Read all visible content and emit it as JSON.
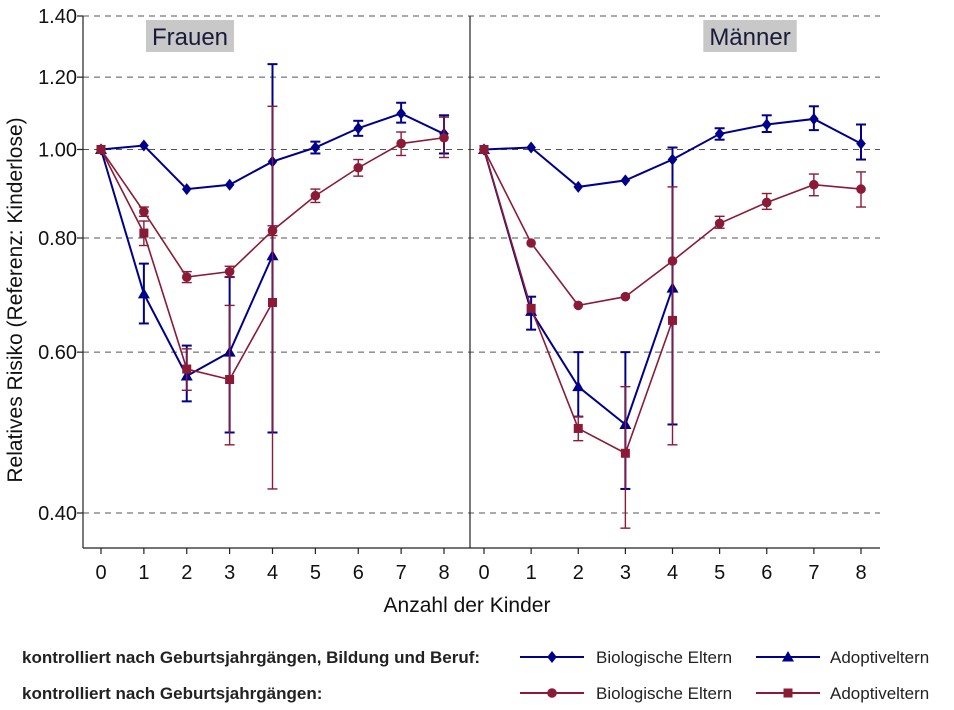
{
  "chart_data": {
    "type": "line",
    "ylabel": "Relatives Risiko (Referenz: Kinderlose)",
    "xlabel": "Anzahl der Kinder",
    "x": [
      0,
      1,
      2,
      3,
      4,
      5,
      6,
      7,
      8
    ],
    "xticks": [
      "0",
      "1",
      "2",
      "3",
      "4",
      "5",
      "6",
      "7",
      "8"
    ],
    "yscale": "log",
    "ylim": [
      0.36,
      1.4
    ],
    "yticks": [
      0.4,
      0.6,
      0.8,
      1.0,
      1.2,
      1.4
    ],
    "ytick_labels": [
      "0.40",
      "0.60",
      "0.80",
      "1.00",
      "1.20",
      "1.40"
    ],
    "grid": "horizontal dashed",
    "colors": {
      "blue": "#00008b",
      "red": "#8b1a36"
    },
    "panels": [
      {
        "title": "Frauen",
        "series": [
          {
            "key": "bio_full",
            "color": "#00008b",
            "marker": "diamond",
            "values": [
              1.0,
              1.01,
              0.905,
              0.915,
              0.97,
              1.005,
              1.055,
              1.095,
              1.04
            ],
            "lower": [
              null,
              null,
              null,
              null,
              null,
              0.99,
              1.035,
              1.07,
              0.99
            ],
            "upper": [
              null,
              null,
              null,
              null,
              null,
              1.02,
              1.075,
              1.125,
              1.09
            ]
          },
          {
            "key": "adopt_full",
            "color": "#00008b",
            "marker": "triangle",
            "values": [
              1.0,
              0.695,
              0.565,
              0.6,
              0.765,
              null,
              null,
              null,
              null
            ],
            "lower": [
              null,
              0.645,
              0.53,
              0.49,
              0.49,
              null,
              null,
              null,
              null
            ],
            "upper": [
              null,
              0.75,
              0.61,
              0.725,
              1.24,
              null,
              null,
              null,
              null
            ]
          },
          {
            "key": "bio_cohort",
            "color": "#8b1a36",
            "marker": "circle",
            "values": [
              1.0,
              0.855,
              0.725,
              0.735,
              0.815,
              0.89,
              0.955,
              1.015,
              1.03
            ],
            "lower": [
              null,
              0.845,
              0.715,
              0.725,
              0.805,
              0.875,
              0.935,
              0.985,
              0.98
            ],
            "upper": [
              null,
              0.865,
              0.735,
              0.745,
              0.825,
              0.905,
              0.975,
              1.045,
              1.085
            ]
          },
          {
            "key": "adopt_cohort",
            "color": "#8b1a36",
            "marker": "square",
            "values": [
              1.0,
              0.81,
              0.575,
              0.56,
              0.68,
              null,
              null,
              null,
              null
            ],
            "lower": [
              null,
              0.785,
              0.545,
              0.475,
              0.425,
              null,
              null,
              null,
              null
            ],
            "upper": [
              null,
              0.835,
              0.605,
              0.675,
              1.115,
              null,
              null,
              null,
              null
            ]
          }
        ]
      },
      {
        "title": "Männer",
        "series": [
          {
            "key": "bio_full",
            "color": "#00008b",
            "marker": "diamond",
            "values": [
              1.0,
              1.005,
              0.91,
              0.925,
              0.975,
              1.04,
              1.065,
              1.08,
              1.015
            ],
            "lower": [
              null,
              null,
              null,
              null,
              null,
              1.025,
              1.045,
              1.05,
              0.975
            ],
            "upper": [
              null,
              null,
              null,
              null,
              null,
              1.055,
              1.09,
              1.115,
              1.065
            ]
          },
          {
            "key": "adopt_full",
            "color": "#00008b",
            "marker": "triangle",
            "values": [
              1.0,
              0.665,
              0.55,
              0.5,
              0.705,
              null,
              null,
              null,
              null
            ],
            "lower": [
              null,
              0.635,
              0.51,
              0.425,
              0.5,
              null,
              null,
              null,
              null
            ],
            "upper": [
              null,
              0.69,
              0.6,
              0.6,
              1.005,
              null,
              null,
              null,
              null
            ]
          },
          {
            "key": "bio_cohort",
            "color": "#8b1a36",
            "marker": "circle",
            "values": [
              1.0,
              0.79,
              0.675,
              0.69,
              0.755,
              0.83,
              0.875,
              0.915,
              0.905
            ],
            "lower": [
              null,
              null,
              null,
              null,
              null,
              0.82,
              0.86,
              0.89,
              0.865
            ],
            "upper": [
              null,
              null,
              null,
              null,
              null,
              0.845,
              0.895,
              0.94,
              0.945
            ]
          },
          {
            "key": "adopt_cohort",
            "color": "#8b1a36",
            "marker": "square",
            "values": [
              1.0,
              0.67,
              0.495,
              0.465,
              0.65,
              null,
              null,
              null,
              null
            ],
            "lower": [
              null,
              null,
              0.48,
              0.385,
              0.475,
              null,
              null,
              null,
              null
            ],
            "upper": [
              null,
              null,
              0.51,
              0.55,
              0.91,
              null,
              null,
              null,
              null
            ]
          }
        ]
      }
    ]
  },
  "legend": {
    "rows": [
      {
        "label": "kontrolliert nach Geburtsjahrgängen, Bildung und Beruf:",
        "items": [
          {
            "label": "Biologische Eltern",
            "color": "#00008b",
            "marker": "diamond"
          },
          {
            "label": "Adoptiveltern",
            "color": "#00008b",
            "marker": "triangle"
          }
        ]
      },
      {
        "label": "kontrolliert nach Geburtsjahrgängen:",
        "items": [
          {
            "label": "Biologische Eltern",
            "color": "#8b1a36",
            "marker": "circle"
          },
          {
            "label": "Adoptiveltern",
            "color": "#8b1a36",
            "marker": "square"
          }
        ]
      }
    ]
  }
}
